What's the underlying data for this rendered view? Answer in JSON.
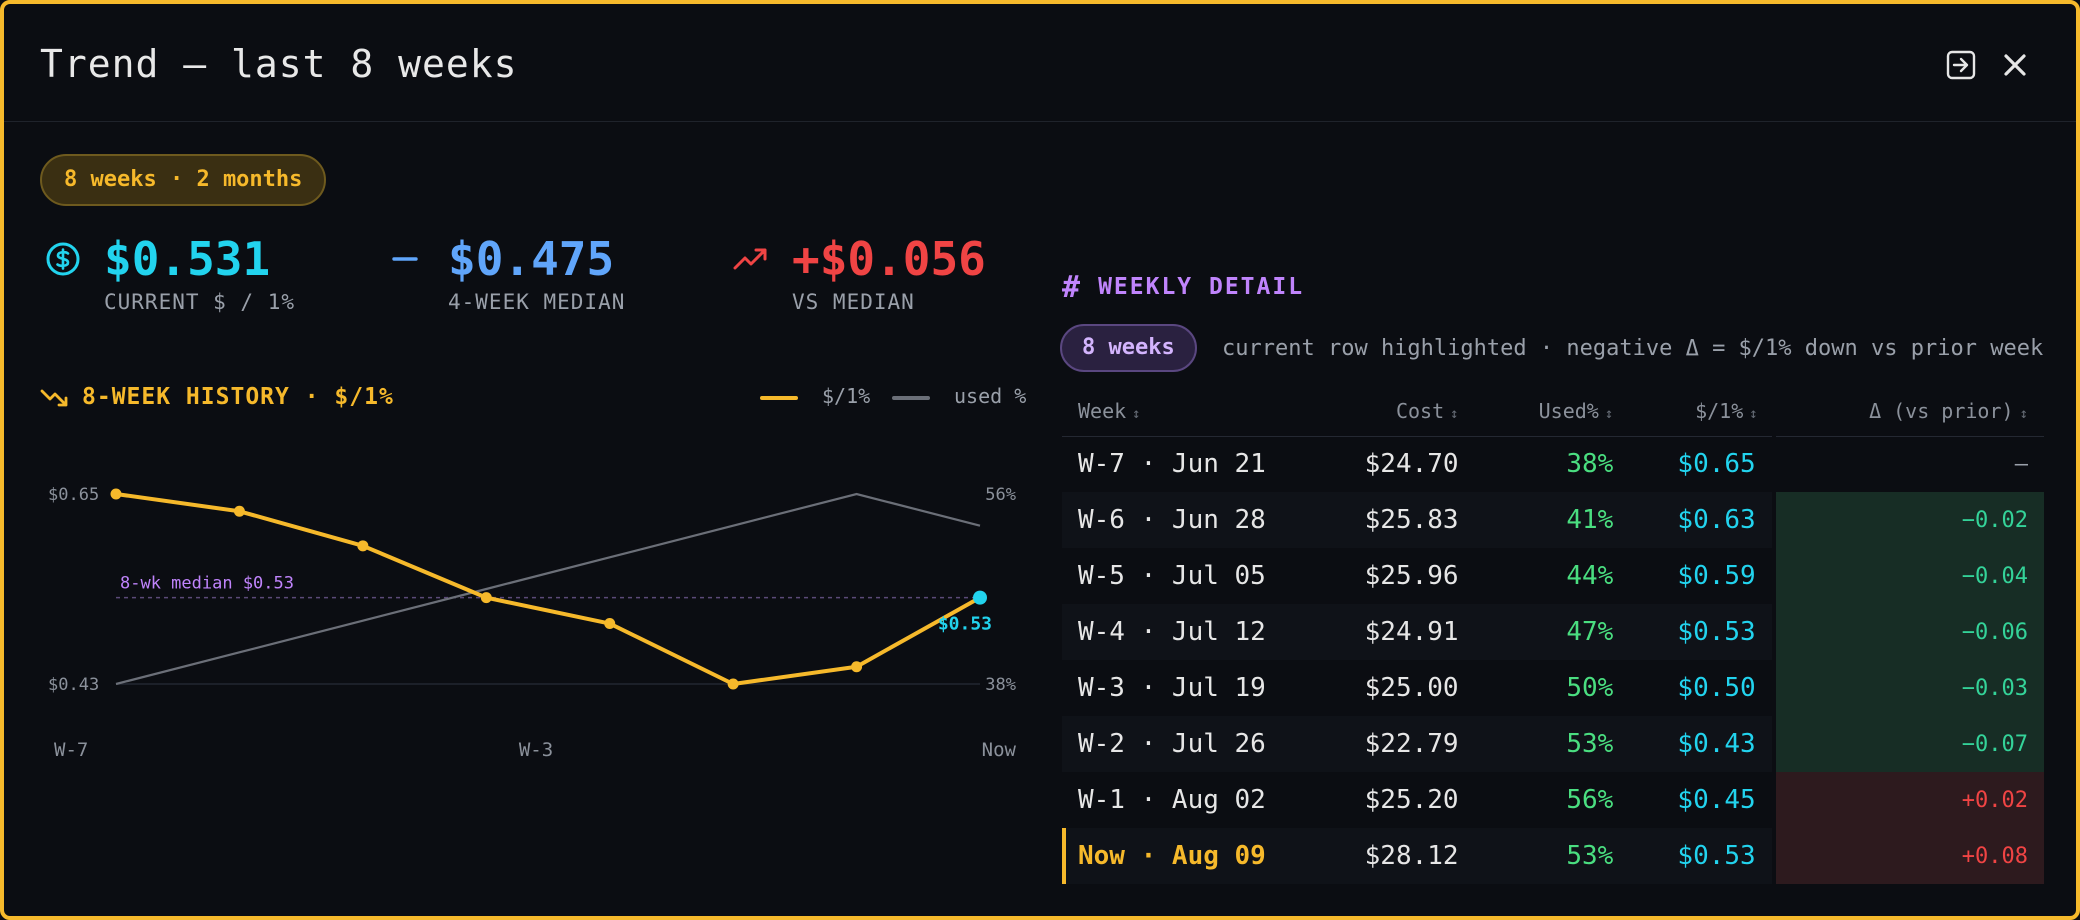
{
  "header": {
    "title": "Trend — last 8 weeks"
  },
  "range_pill": "8 weeks · 2 months",
  "stats": [
    {
      "value": "$0.531",
      "label": "CURRENT $ / 1%",
      "icon": "dollar-circle-icon",
      "color": "#22d3ee"
    },
    {
      "value": "$0.475",
      "label": "4-WEEK MEDIAN",
      "icon": "dash-icon",
      "color": "#60a5fa"
    },
    {
      "value": "+$0.056",
      "label": "VS MEDIAN",
      "icon": "trending-up-icon",
      "color": "#f04444"
    }
  ],
  "history": {
    "title": "8-WEEK HISTORY · $/1%",
    "legend": {
      "rate": "$/1%",
      "used": "used %"
    }
  },
  "chart_data": {
    "type": "line",
    "categories": [
      "W-7",
      "W-6",
      "W-5",
      "W-4",
      "W-3",
      "W-2",
      "W-1",
      "Now"
    ],
    "x_tick_labels": [
      "W-7",
      "W-3",
      "Now"
    ],
    "series": [
      {
        "name": "$/1%",
        "values": [
          0.65,
          0.63,
          0.59,
          0.53,
          0.5,
          0.43,
          0.45,
          0.53
        ],
        "color": "#f6b92b",
        "axis": "left"
      },
      {
        "name": "used %",
        "values": [
          38,
          41,
          44,
          47,
          50,
          53,
          56,
          53
        ],
        "color": "#6b6f78",
        "axis": "right"
      }
    ],
    "left_axis": {
      "ticks": [
        "$0.65",
        "$0.43"
      ],
      "range": [
        0.43,
        0.65
      ]
    },
    "right_axis": {
      "ticks": [
        "56%",
        "38%"
      ],
      "range": [
        38,
        56
      ]
    },
    "median": {
      "value": 0.53,
      "label": "8-wk median $0.53",
      "color": "#c084fc"
    },
    "last_point_label": "$0.53",
    "last_point_color": "#22d3ee"
  },
  "detail": {
    "title": "WEEKLY DETAIL",
    "pill": "8 weeks",
    "note": "current row highlighted · negative Δ = $/1% down vs prior week",
    "columns": [
      "Week",
      "Cost",
      "Used%",
      "$/1%",
      "Δ (vs prior)"
    ],
    "rows": [
      {
        "week": "W-7 · Jun 21",
        "cost": "$24.70",
        "used": "38%",
        "rate": "$0.65",
        "delta": "—",
        "trend": "none"
      },
      {
        "week": "W-6 · Jun 28",
        "cost": "$25.83",
        "used": "41%",
        "rate": "$0.63",
        "delta": "−0.02",
        "trend": "neg"
      },
      {
        "week": "W-5 · Jul 05",
        "cost": "$25.96",
        "used": "44%",
        "rate": "$0.59",
        "delta": "−0.04",
        "trend": "neg"
      },
      {
        "week": "W-4 · Jul 12",
        "cost": "$24.91",
        "used": "47%",
        "rate": "$0.53",
        "delta": "−0.06",
        "trend": "neg"
      },
      {
        "week": "W-3 · Jul 19",
        "cost": "$25.00",
        "used": "50%",
        "rate": "$0.50",
        "delta": "−0.03",
        "trend": "neg"
      },
      {
        "week": "W-2 · Jul 26",
        "cost": "$22.79",
        "used": "53%",
        "rate": "$0.43",
        "delta": "−0.07",
        "trend": "neg"
      },
      {
        "week": "W-1 · Aug 02",
        "cost": "$25.20",
        "used": "56%",
        "rate": "$0.45",
        "delta": "+0.02",
        "trend": "pos"
      },
      {
        "week": "Now · Aug 09",
        "cost": "$28.12",
        "used": "53%",
        "rate": "$0.53",
        "delta": "+0.08",
        "trend": "pos",
        "current": true
      }
    ]
  }
}
